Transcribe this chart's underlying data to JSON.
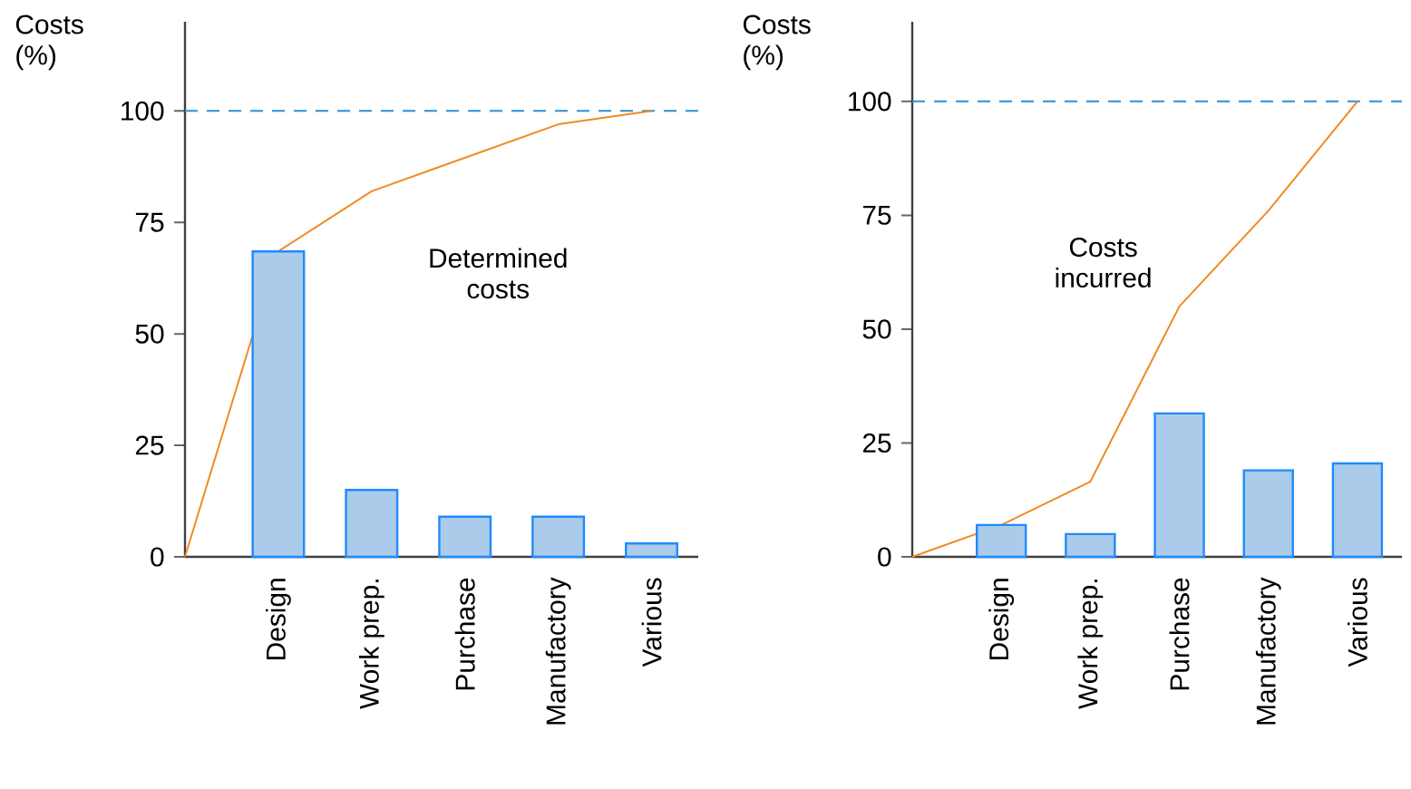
{
  "chart_data": [
    {
      "type": "bar",
      "ylabel": "Costs (%)",
      "categories": [
        null,
        "Design",
        "Work prep.",
        "Purchase",
        "Manufactory",
        "Various"
      ],
      "series": [
        {
          "type": "line",
          "color": "#f08a24",
          "values": [
            0,
            68.5,
            82,
            89.5,
            97,
            100
          ]
        },
        {
          "color": "#aacbea",
          "values": [
            null,
            68.5,
            15,
            9,
            9,
            3
          ]
        }
      ],
      "ylim": [
        0,
        120
      ],
      "yticks": [
        0,
        25,
        50,
        75,
        100
      ],
      "ref_lines": [
        {
          "axis": "y",
          "value": 100,
          "color": "#2e8fd6",
          "line_style": "dashed"
        }
      ],
      "annotations": [
        "Determined costs"
      ]
    },
    {
      "type": "bar",
      "ylabel": "Costs (%)",
      "categories": [
        null,
        "Design",
        "Work prep.",
        "Purchase",
        "Manufactory",
        "Various"
      ],
      "series": [
        {
          "type": "line",
          "color": "#f08a24",
          "values": [
            0,
            7,
            16.5,
            55,
            76,
            100
          ]
        },
        {
          "color": "#aacbea",
          "values": [
            null,
            7,
            5,
            31.5,
            19,
            20.5
          ]
        }
      ],
      "ylim": [
        0,
        117.5
      ],
      "yticks": [
        0,
        25,
        50,
        75,
        100
      ],
      "ref_lines": [
        {
          "axis": "y",
          "value": 100,
          "color": "#2e8fd6",
          "line_style": "dashed"
        }
      ],
      "annotations": [
        "Costs incurred"
      ]
    }
  ]
}
